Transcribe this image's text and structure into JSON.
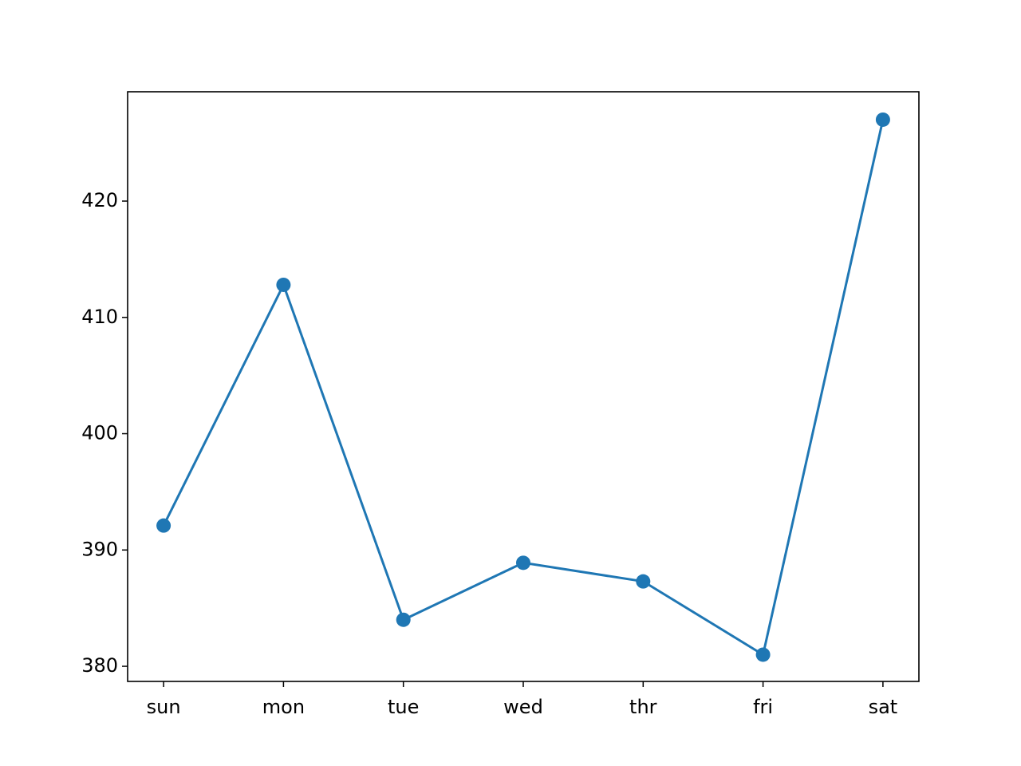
{
  "chart_data": {
    "type": "line",
    "categories": [
      "sun",
      "mon",
      "tue",
      "wed",
      "thr",
      "fri",
      "sat"
    ],
    "values": [
      392.1,
      412.8,
      384.0,
      388.9,
      387.3,
      381.0,
      427.0
    ],
    "color": "#1f77b4",
    "ylim": [
      378.7,
      429.4
    ],
    "yticks": [
      380,
      390,
      400,
      410,
      420
    ],
    "grid": false,
    "markers": true
  }
}
